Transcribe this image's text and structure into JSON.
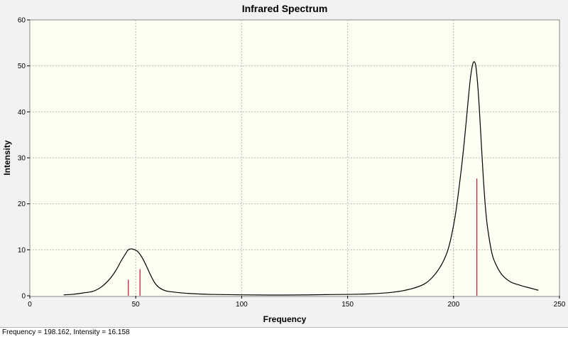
{
  "chart_data": {
    "type": "line",
    "title": "Infrared Spectrum",
    "xlabel": "Frequency",
    "ylabel": "Intensity",
    "xlim": [
      0,
      250
    ],
    "ylim": [
      0,
      60
    ],
    "x_ticks": [
      "0",
      "50",
      "100",
      "150",
      "200",
      "250"
    ],
    "y_ticks": [
      "0",
      "10",
      "20",
      "30",
      "40",
      "50",
      "60"
    ],
    "grid": true,
    "spectrum": {
      "x": [
        16,
        20,
        25,
        30,
        34,
        38,
        41,
        43,
        45,
        46.5,
        48,
        49.5,
        51,
        53,
        55,
        57,
        59,
        61,
        64,
        68,
        75,
        85,
        100,
        120,
        140,
        160,
        172,
        180,
        186,
        190,
        194,
        197,
        199,
        201,
        203,
        204.5,
        206,
        207,
        208,
        209,
        209.8,
        210.5,
        211.2,
        212,
        213,
        214,
        215,
        216,
        218,
        220,
        223,
        227,
        232,
        236,
        240
      ],
      "y": [
        0.2,
        0.3,
        0.6,
        1.0,
        2.0,
        3.8,
        5.8,
        7.5,
        9.0,
        10.0,
        10.2,
        10.0,
        9.6,
        8.3,
        6.5,
        4.5,
        2.8,
        1.8,
        1.1,
        0.8,
        0.5,
        0.3,
        0.2,
        0.15,
        0.25,
        0.4,
        0.8,
        1.5,
        2.5,
        4.0,
        6.5,
        9.5,
        13.0,
        18.0,
        25.0,
        31.0,
        38.0,
        43.0,
        47.5,
        50.3,
        50.9,
        50.0,
        47.0,
        42.0,
        34.0,
        26.0,
        19.5,
        15.0,
        9.5,
        6.8,
        4.5,
        3.0,
        2.2,
        1.7,
        1.2
      ]
    },
    "stick_lines": {
      "x": [
        46.5,
        52,
        211
      ],
      "y": [
        3.5,
        5.8,
        25.5
      ]
    },
    "colors": {
      "spectrum": "#000000",
      "sticks": "#c0283c",
      "grid": "#bbbbbb",
      "plot_bg": "#fefef3",
      "frame_bg": "#f2f2f2"
    }
  },
  "status_bar": {
    "text": "Frequency = 198.162,  Intensity = 16.158"
  }
}
